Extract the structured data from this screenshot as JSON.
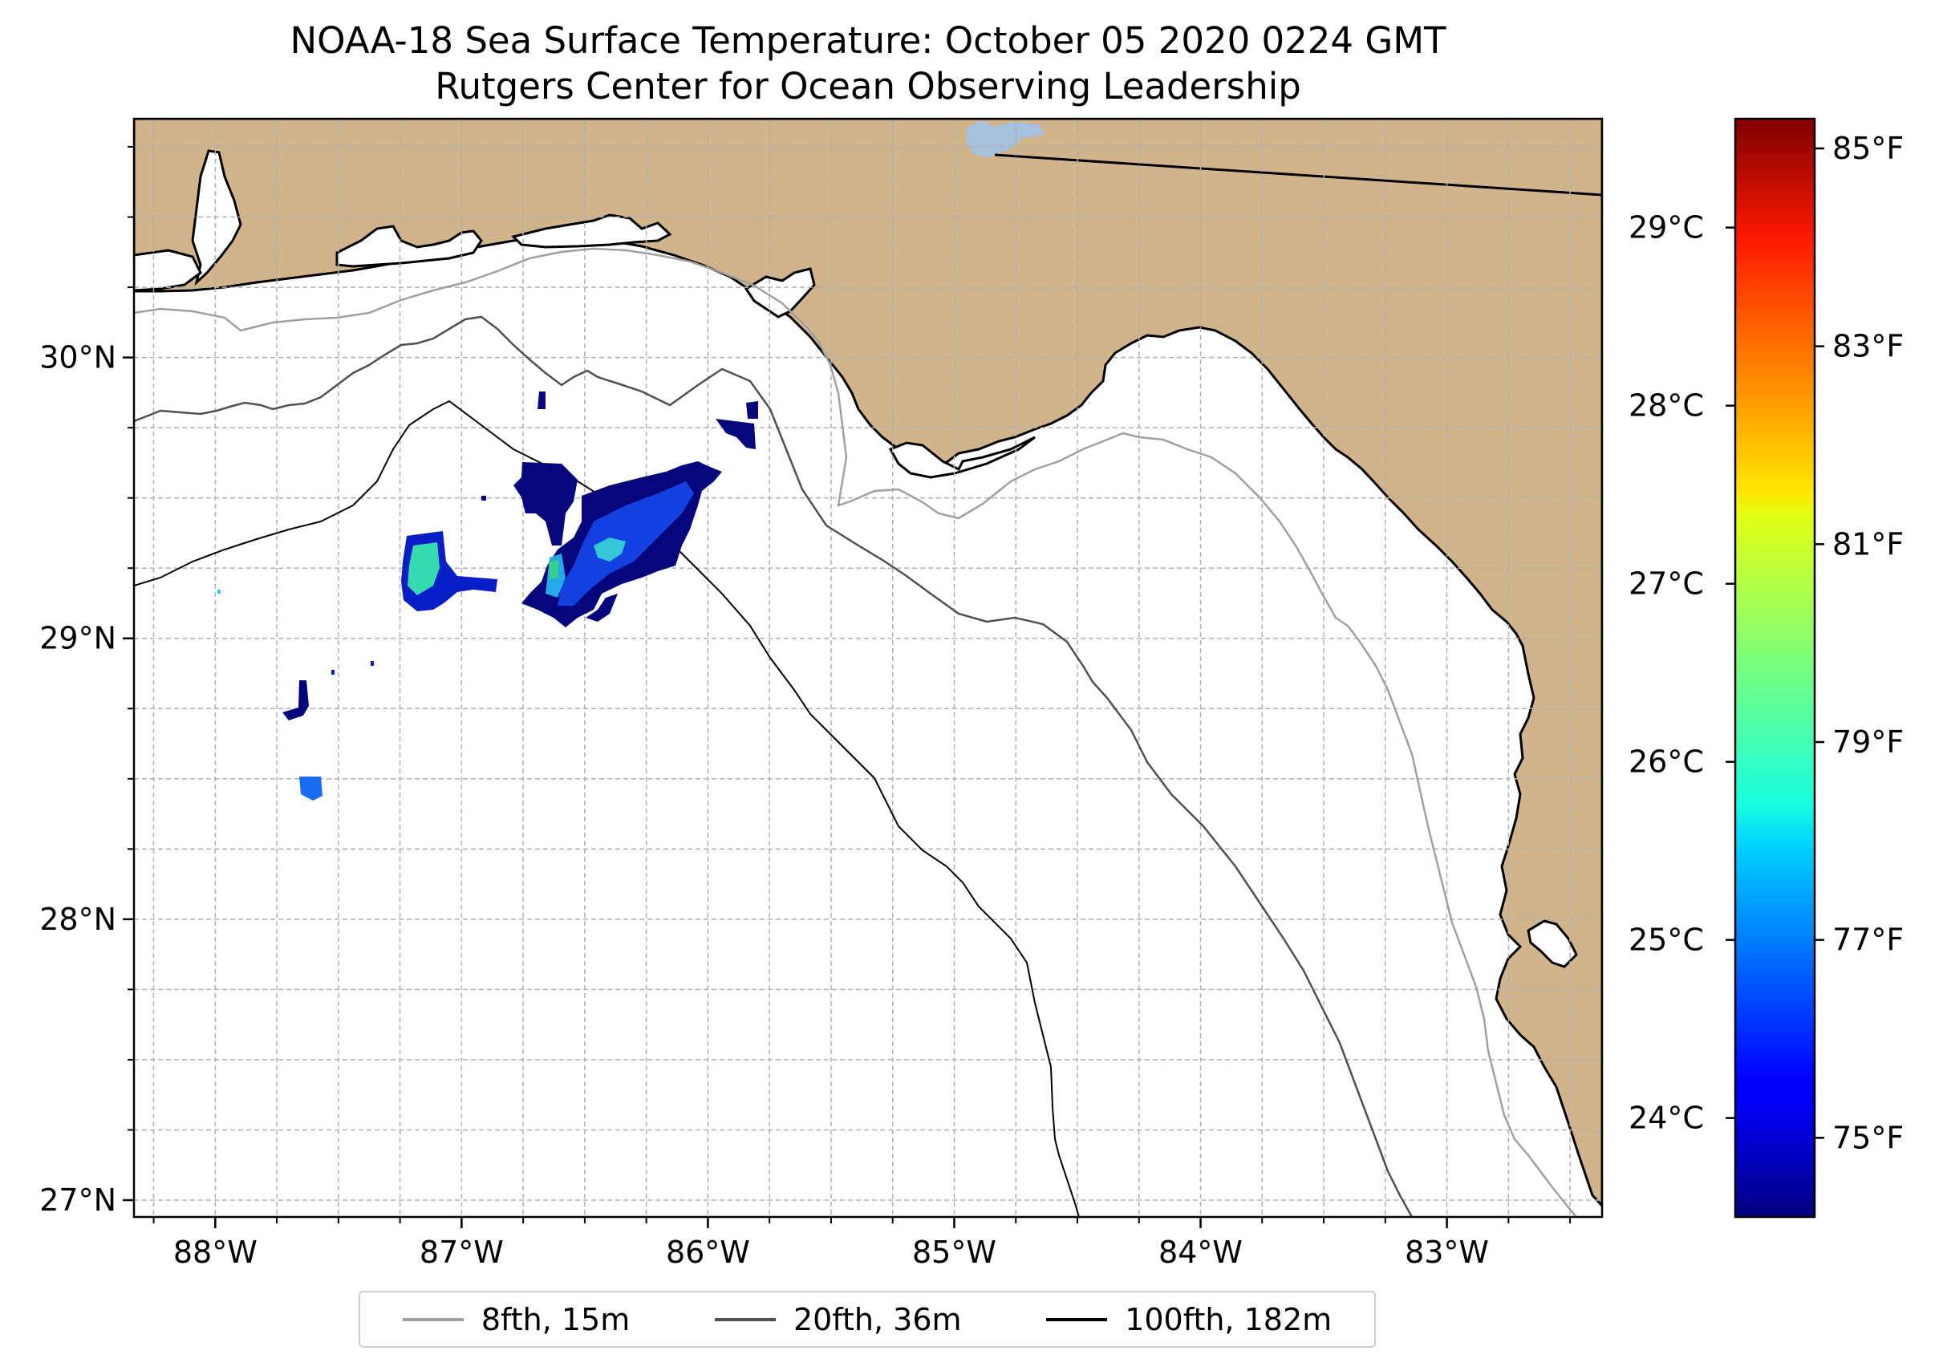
{
  "title": {
    "line1": "NOAA-18 Sea Surface Temperature: October 05 2020 0224 GMT",
    "line2": "Rutgers Center for Ocean Observing Leadership"
  },
  "map": {
    "lon_range": [
      -88.33,
      -82.37
    ],
    "lat_range": [
      26.94,
      30.85
    ],
    "lon_ticks": [
      {
        "value": -88,
        "label": "88°W"
      },
      {
        "value": -87,
        "label": "87°W"
      },
      {
        "value": -86,
        "label": "86°W"
      },
      {
        "value": -85,
        "label": "85°W"
      },
      {
        "value": -84,
        "label": "84°W"
      },
      {
        "value": -83,
        "label": "83°W"
      }
    ],
    "lat_ticks": [
      {
        "value": 30,
        "label": "30°N"
      },
      {
        "value": 29,
        "label": "29°N"
      },
      {
        "value": 28,
        "label": "28°N"
      },
      {
        "value": 27,
        "label": "27°N"
      }
    ],
    "grid": "dashed, every 0.25°",
    "land_color": "#d2b48c",
    "water_color": "#ffffff",
    "lake_color": "#a5bfdd"
  },
  "colorbar": {
    "colormap": "jet",
    "range_f": [
      74.2,
      85.3
    ],
    "celsius_ticks": [
      {
        "value": 29,
        "label": "29°C"
      },
      {
        "value": 28,
        "label": "28°C"
      },
      {
        "value": 27,
        "label": "27°C"
      },
      {
        "value": 26,
        "label": "26°C"
      },
      {
        "value": 25,
        "label": "25°C"
      },
      {
        "value": 24,
        "label": "24°C"
      }
    ],
    "fahrenheit_ticks": [
      {
        "value": 85,
        "label": "85°F"
      },
      {
        "value": 83,
        "label": "83°F"
      },
      {
        "value": 81,
        "label": "81°F"
      },
      {
        "value": 79,
        "label": "79°F"
      },
      {
        "value": 77,
        "label": "77°F"
      },
      {
        "value": 75,
        "label": "75°F"
      }
    ]
  },
  "legend": {
    "items": [
      {
        "label": "8fth, 15m",
        "color": "#a0a0a0"
      },
      {
        "label": "20fth, 36m",
        "color": "#505050"
      },
      {
        "label": "100fth, 182m",
        "color": "#000000"
      }
    ]
  }
}
